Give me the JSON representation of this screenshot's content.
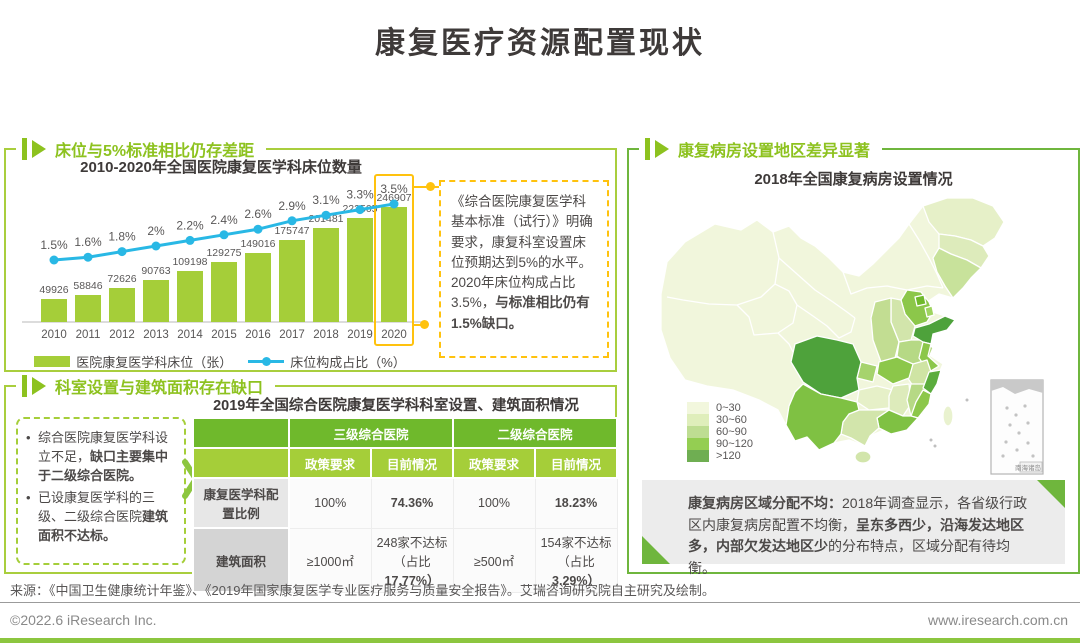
{
  "page": {
    "title": "康复医疗资源配置现状"
  },
  "colors": {
    "green_bar": "#a5ce39",
    "green_dark": "#6fb92c",
    "green_header": "#8dc21f",
    "blue_line": "#29b8e5",
    "yellow_highlight": "#ffc20e",
    "text_dark": "#4c4948"
  },
  "sections": {
    "beds": {
      "header": "床位与5%标准相比仍存差距",
      "chart_title": "2010-2020年全国医院康复医学科床位数量",
      "legend_bar": "医院康复医学科床位（张）",
      "legend_line": "床位构成占比（%）",
      "callout_runs": [
        {
          "t": "《综合医院康复医学科基本标准（试行）》明确要求，康复科室设置床位预期达到5%的水平。2020年床位构成占比3.5%，"
        },
        {
          "t": "与标准相比仍有1.5%缺口。",
          "b": true
        }
      ]
    },
    "dept": {
      "header": "科室设置与建筑面积存在缺口",
      "table_title": "2019年全国综合医院康复医学科科室设置、建筑面积情况",
      "bullets": [
        [
          {
            "t": "综合医院康复医学科设立不足，"
          },
          {
            "t": "缺口主要集中于二级综合医院。",
            "b": true
          }
        ],
        [
          {
            "t": "已设康复医学科的三级、二级综合医院"
          },
          {
            "t": "建筑面积不达标。",
            "b": true
          }
        ]
      ],
      "table": {
        "group_headers": [
          "三级综合医院",
          "二级综合医院"
        ],
        "sub_headers": [
          "政策要求",
          "目前情况",
          "政策要求",
          "目前情况"
        ],
        "rows": [
          {
            "label": "康复医学科配置比例",
            "cells": [
              [
                {
                  "t": "100%"
                }
              ],
              [
                {
                  "t": "74.36%",
                  "b": true
                }
              ],
              [
                {
                  "t": "100%"
                }
              ],
              [
                {
                  "t": "18.23%",
                  "b": true
                }
              ]
            ]
          },
          {
            "label": "建筑面积",
            "cells": [
              [
                {
                  "t": "≥1000㎡"
                }
              ],
              [
                {
                  "t": "248家不达标（占比"
                },
                {
                  "t": "17.77%）",
                  "b": true
                }
              ],
              [
                {
                  "t": "≥500㎡"
                }
              ],
              [
                {
                  "t": "154家不达标（占比"
                },
                {
                  "t": "3.29%）",
                  "b": true
                }
              ]
            ]
          }
        ]
      }
    },
    "map": {
      "header": "康复病房设置地区差异显著",
      "map_title": "2018年全国康复病房设置情况",
      "legend": [
        {
          "label": "0~30",
          "color": "#f2f7dd"
        },
        {
          "label": "30~60",
          "color": "#dfeebb"
        },
        {
          "label": "60~90",
          "color": "#bedd92"
        },
        {
          "label": "90~120",
          "color": "#94ce52"
        },
        {
          "label": ">120",
          "color": "#6fae52"
        }
      ],
      "inset_label": "南海诸岛",
      "note_runs": [
        {
          "t": "康复病房区域分配不均：",
          "b": true
        },
        {
          "t": "2018年调查显示，各省级行政区内康复病房配置不均衡，"
        },
        {
          "t": "呈东多西少，沿海发达地区多，内部欠发达地区少",
          "b": true
        },
        {
          "t": "的分布特点，区域分配有待均衡。"
        }
      ]
    }
  },
  "map_regions": {
    "west-base": "#f1f6dc",
    "xinjiang": "#edf3d1",
    "tibet": "#f5f8e5",
    "qinghai": "#f7fae9",
    "heilongjiang": "#e6f0c8",
    "jilin": "#ddebbb",
    "liaoning": "#c8e29b",
    "hebei": "#8cc74a",
    "beijing": "#6fb92c",
    "tianjin": "#9ed45f",
    "shanxi": "#d2e5ab",
    "shaanxi": "#c2dd92",
    "henan": "#b6d985",
    "shandong": "#4ea23b",
    "jiangsu": "#8cc74a",
    "anhui": "#cfe4a4",
    "hubei": "#8cc74a",
    "chongqing": "#a6d36d",
    "sichuan": "#4ea23b",
    "guizhou": "#e6f0c8",
    "hunan": "#ddebbb",
    "jiangxi": "#b6d985",
    "zhejiang": "#5bac3d",
    "fujian": "#8cc74a",
    "guangdong": "#7fc143",
    "guangxi": "#d2e5ab",
    "yunnan": "#7fc143",
    "hainan": "#d2e5ab",
    "taiwan": "#e9f2cf"
  },
  "chart_data": [
    {
      "type": "bar",
      "subtype": "combo-bar-line",
      "title": "2010-2020年全国医院康复医学科床位数量",
      "categories": [
        "2010",
        "2011",
        "2012",
        "2013",
        "2014",
        "2015",
        "2016",
        "2017",
        "2018",
        "2019",
        "2020"
      ],
      "series": [
        {
          "name": "医院康复医学科床位（张）",
          "type": "bar",
          "values": [
            49926,
            58846,
            72626,
            90763,
            109198,
            129275,
            149016,
            175747,
            201481,
            223505,
            246907
          ]
        },
        {
          "name": "床位构成占比（%）",
          "type": "line",
          "values": [
            1.5,
            1.6,
            1.8,
            2.0,
            2.2,
            2.4,
            2.6,
            2.9,
            3.1,
            3.3,
            3.5
          ]
        }
      ],
      "highlight_category": "2020",
      "legend_position": "bottom",
      "grid": false
    },
    {
      "type": "heatmap",
      "subtype": "choropleth-china",
      "title": "2018年全国康复病房设置情况",
      "legend_bins": [
        "0~30",
        "30~60",
        "60~90",
        "90~120",
        ">120"
      ],
      "note": "呈东多西少、沿海发达地区多、内部欠发达地区少；四川、山东为最深色（>120），云南、广东、浙江、福建、湖北、河北、江苏等为较深色，西部省份为最浅色（0~30）"
    }
  ],
  "footer": {
    "source": "来源：《中国卫生健康统计年鉴》、《2019年国家康复医学专业医疗服务与质量安全报告》。艾瑞咨询研究院自主研究及绘制。",
    "copyright": "©2022.6 iResearch Inc.",
    "site": "www.iresearch.com.cn"
  }
}
